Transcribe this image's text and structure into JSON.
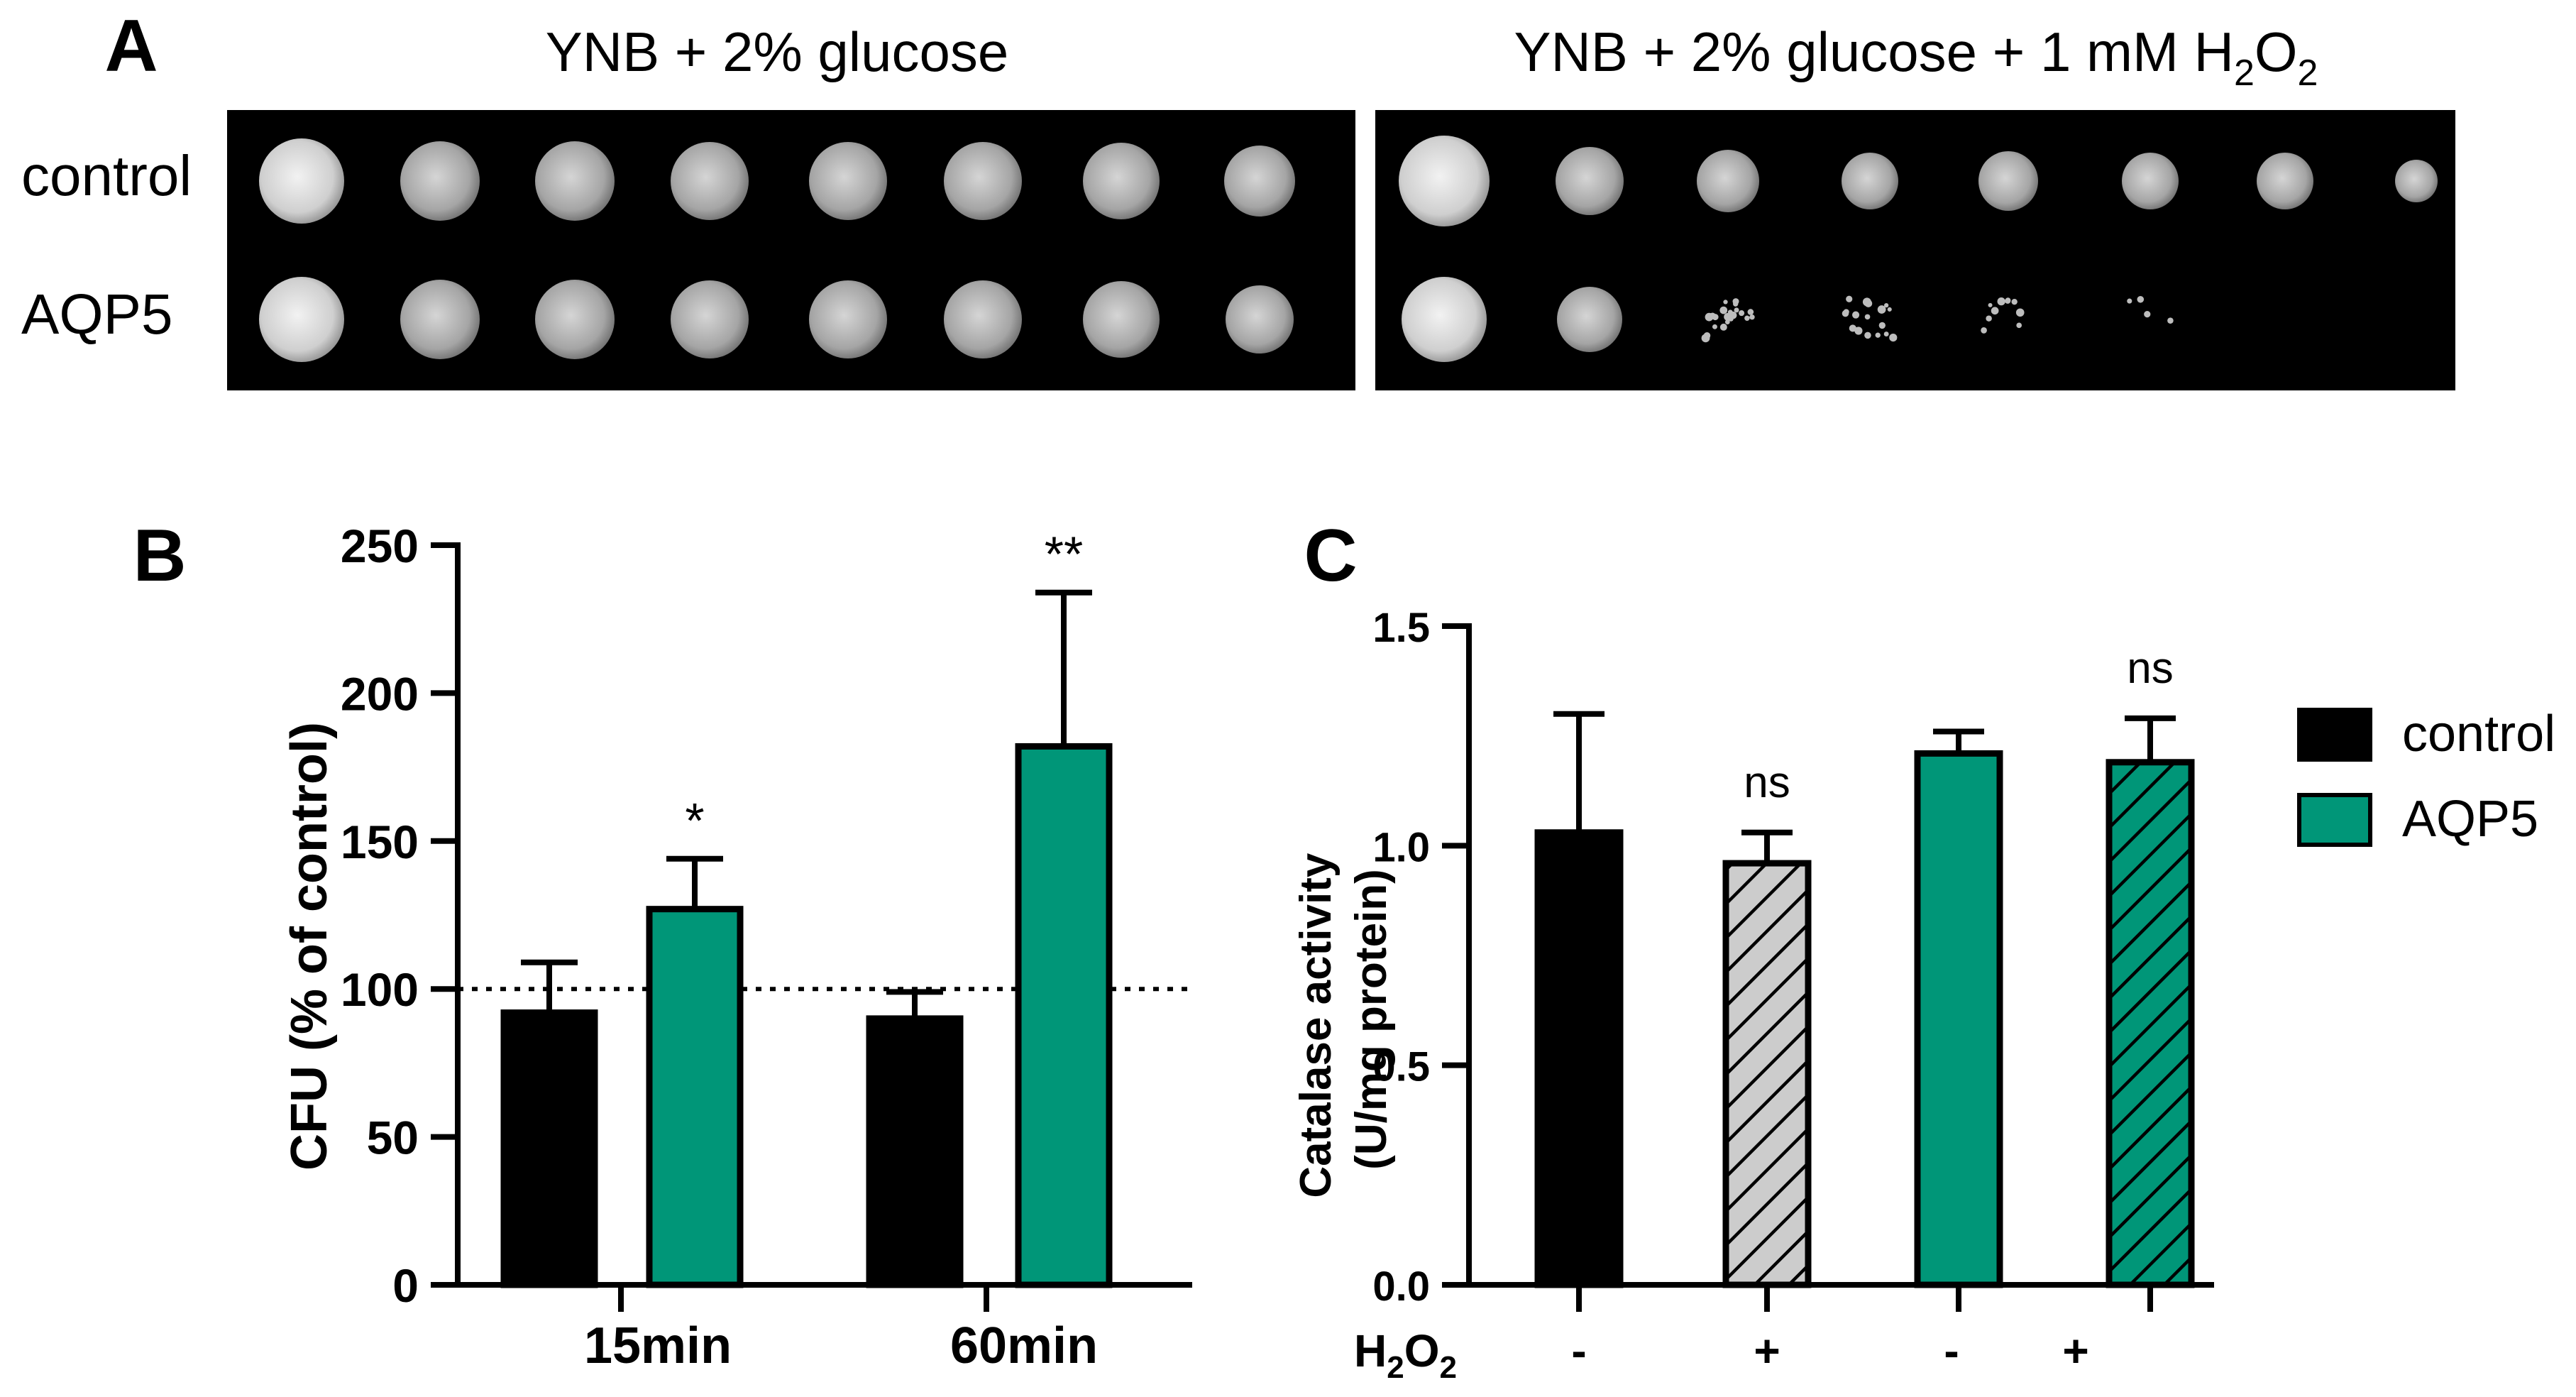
{
  "panel_a": {
    "panel_label": "A",
    "left_title": "YNB + 2% glucose",
    "right_title_main": "YNB + 2% glucose + 1 mM H",
    "right_title_sub1": "2",
    "right_title_mid": "O",
    "right_title_sub2": "2",
    "row_labels": [
      "control",
      "AQP5"
    ]
  },
  "panel_b": {
    "panel_label": "B"
  },
  "panel_c": {
    "panel_label": "C",
    "treatment_label_main": "H",
    "treatment_label_sub1": "2",
    "treatment_label_mid": "O",
    "treatment_label_sub2": "2",
    "treatment_signs": [
      "-",
      "+",
      "-",
      "+"
    ]
  },
  "legend": {
    "items": [
      "control",
      "AQP5"
    ]
  },
  "colors": {
    "control": "#000000",
    "aqp5": "#009678",
    "h2o2_control": "#cccccc",
    "reference_line": "#000000"
  },
  "chart_data": [
    {
      "type": "bar",
      "categories": [
        "15min",
        "60min"
      ],
      "series": [
        {
          "name": "control",
          "values": [
            92,
            90
          ],
          "error": [
            17,
            9
          ]
        },
        {
          "name": "AQP5",
          "values": [
            127,
            182
          ],
          "error": [
            17,
            52
          ]
        }
      ],
      "significance": [
        [
          "",
          "*"
        ],
        [
          "",
          "**"
        ]
      ],
      "ylabel": "CFU (% of control)",
      "ylim": [
        0,
        250
      ],
      "yticks": [
        0,
        50,
        100,
        150,
        200,
        250
      ],
      "reference_line": 100,
      "legend": "right"
    },
    {
      "type": "bar",
      "categories": [
        "-",
        "+",
        "-",
        "+"
      ],
      "strain": [
        "control",
        "control",
        "AQP5",
        "AQP5"
      ],
      "values": [
        1.03,
        0.96,
        1.21,
        1.19
      ],
      "error": [
        0.27,
        0.07,
        0.05,
        0.1
      ],
      "hatched": [
        false,
        true,
        false,
        true
      ],
      "significance": [
        "",
        "ns",
        "",
        "ns"
      ],
      "ylabel": "Catalase activity (U/mg protein)",
      "ylim": [
        0,
        1.5
      ],
      "yticks": [
        "0.0",
        "0.5",
        "1.0",
        "1.5"
      ],
      "legend": "right"
    }
  ]
}
